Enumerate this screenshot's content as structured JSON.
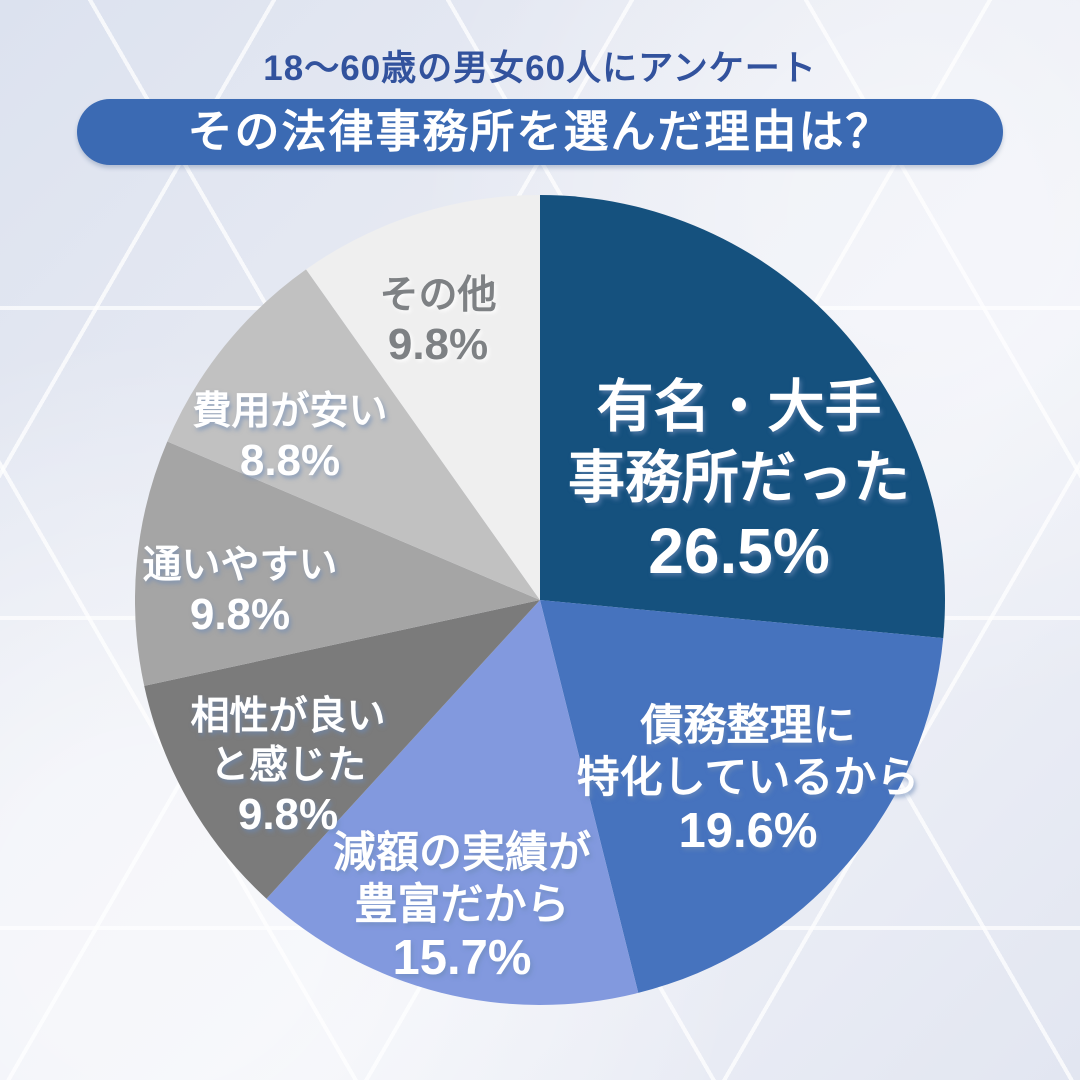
{
  "header": {
    "survey_note": "18〜60歳の男女60人にアンケート",
    "title": "その法律事務所を選んだ理由は？"
  },
  "colors": {
    "note_text": "#32529D",
    "title_pill_bg": "#3B6AB3",
    "title_text": "#FFFFFF",
    "background_base": "#E7EAF3"
  },
  "chart_data": {
    "type": "pie",
    "title": "その法律事務所を選んだ理由は？",
    "subtitle": "18〜60歳の男女60人にアンケート",
    "legend_position": "none",
    "start_angle_deg": 0,
    "direction": "clockwise",
    "slices": [
      {
        "label": "有名・大手事務所だった",
        "lines": [
          "有名・大手",
          "事務所だった"
        ],
        "value": 26.5,
        "pct_label": "26.5%",
        "color": "#15517E",
        "text_color": "#FFFFFF"
      },
      {
        "label": "債務整理に特化しているから",
        "lines": [
          "債務整理に",
          "特化しているから"
        ],
        "value": 19.6,
        "pct_label": "19.6%",
        "color": "#4673BE",
        "text_color": "#FFFFFF"
      },
      {
        "label": "減額の実績が豊富だから",
        "lines": [
          "減額の実績が",
          "豊富だから"
        ],
        "value": 15.7,
        "pct_label": "15.7%",
        "color": "#8299DE",
        "text_color": "#FFFFFF"
      },
      {
        "label": "相性が良いと感じた",
        "lines": [
          "相性が良い",
          "と感じた"
        ],
        "value": 9.8,
        "pct_label": "9.8%",
        "color": "#7B7B7B",
        "text_color": "#FFFFFF"
      },
      {
        "label": "通いやすい",
        "lines": [
          "通いやすい"
        ],
        "value": 9.8,
        "pct_label": "9.8%",
        "color": "#A5A5A5",
        "text_color": "#FFFFFF"
      },
      {
        "label": "費用が安い",
        "lines": [
          "費用が安い"
        ],
        "value": 8.8,
        "pct_label": "8.8%",
        "color": "#C1C1C1",
        "text_color": "#FFFFFF"
      },
      {
        "label": "その他",
        "lines": [
          "その他"
        ],
        "value": 9.8,
        "pct_label": "9.8%",
        "color": "#EFEFEF",
        "text_color": "#7E8184"
      }
    ]
  }
}
